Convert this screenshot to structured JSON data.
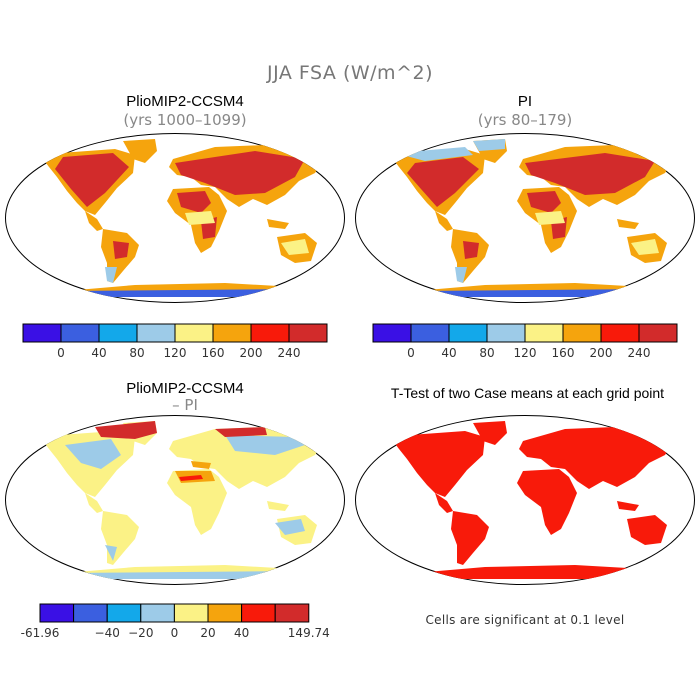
{
  "title": "JJA FSA (W/m^2)",
  "panels": [
    {
      "title": "PlioMIP2-CCSM4",
      "subtitle": "(yrs 1000–1099)"
    },
    {
      "title": "PI",
      "subtitle": "(yrs 80–179)"
    },
    {
      "title": "PlioMIP2-CCSM4",
      "subtitle": "– PI"
    },
    {
      "title": "T-Test of two Case means at each grid point",
      "subtitle": ""
    }
  ],
  "colorbar_abs": {
    "colors": [
      "#3a10e5",
      "#3b5fe0",
      "#13a8ea",
      "#9dcbe8",
      "#fbf286",
      "#f5a40d",
      "#f81a0a",
      "#d22b2b"
    ],
    "labels": [
      "0",
      "40",
      "80",
      "120",
      "160",
      "200",
      "240"
    ]
  },
  "colorbar_diff": {
    "colors": [
      "#3a10e5",
      "#3b5fe0",
      "#13a8ea",
      "#9dcbe8",
      "#fbf286",
      "#f5a40d",
      "#f81a0a",
      "#d22b2b"
    ],
    "labels": [
      "-61.96",
      "−40",
      "−20",
      "0",
      "20",
      "40",
      "149.74"
    ]
  },
  "significance_note": "Cells are significant at 0.1 level"
}
